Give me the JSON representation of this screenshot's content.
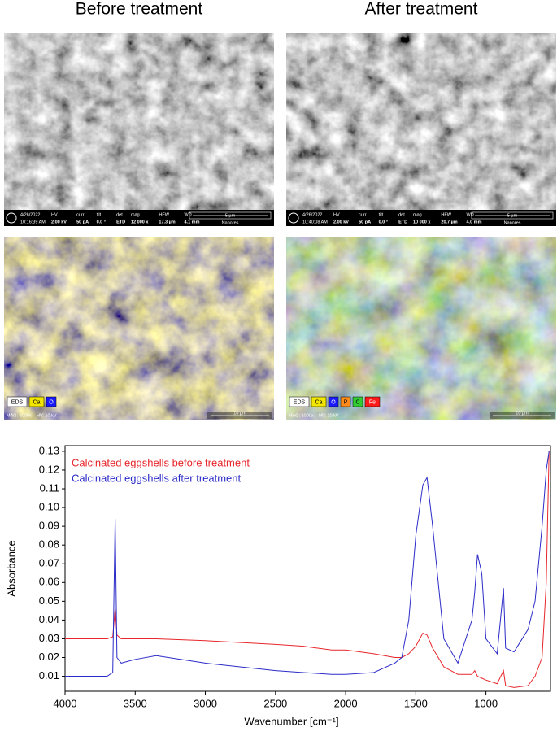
{
  "panels": [
    {
      "title": "Before treatment",
      "sem": {
        "date": "4/26/2022",
        "time": "10:16:39 AM",
        "fields": [
          {
            "label": "HV",
            "value": "2.00 kV"
          },
          {
            "label": "curr",
            "value": "50 pA"
          },
          {
            "label": "tilt",
            "value": "0.0 °"
          },
          {
            "label": "det",
            "value": "ETD"
          },
          {
            "label": "mag",
            "value": "12 000 x"
          },
          {
            "label": "HFW",
            "value": "17.3 µm"
          },
          {
            "label": "WD",
            "value": "4.1 mm"
          }
        ],
        "scale": "5 µm",
        "lab": "Nanores"
      },
      "eds": {
        "legend": [
          {
            "label": "EDS",
            "color": "#ffffff"
          },
          {
            "label": "Ca",
            "color": "#f2e600"
          },
          {
            "label": "O",
            "color": "#1a1aff"
          }
        ],
        "mag": "MAG: 5000x",
        "hv": "HV: 10 kV",
        "scale": "10 µm"
      }
    },
    {
      "title": "After treatment",
      "sem": {
        "date": "4/26/2022",
        "time": "10:40:08 AM",
        "fields": [
          {
            "label": "HV",
            "value": "2.00 kV"
          },
          {
            "label": "curr",
            "value": "50 pA"
          },
          {
            "label": "tilt",
            "value": "0.0 °"
          },
          {
            "label": "det",
            "value": "ETD"
          },
          {
            "label": "mag",
            "value": "10 000 x"
          },
          {
            "label": "HFW",
            "value": "20.7 µm"
          },
          {
            "label": "WD",
            "value": "4.0 mm"
          }
        ],
        "scale": "5 µm",
        "lab": "Nanores"
      },
      "eds": {
        "legend": [
          {
            "label": "EDS",
            "color": "#ffffff"
          },
          {
            "label": "Ca",
            "color": "#f2e600"
          },
          {
            "label": "O",
            "color": "#1a1aff"
          },
          {
            "label": "P",
            "color": "#ff8c1a"
          },
          {
            "label": "C",
            "color": "#33cc33"
          },
          {
            "label": "Fe",
            "color": "#ff1a1a"
          }
        ],
        "mag": "MAG: 1000x",
        "hv": "HV: 10 kV",
        "scale": "10 µm"
      }
    }
  ],
  "chart_data": {
    "type": "line",
    "x_label": "Wavenumber [cm⁻¹]",
    "y_label": "Absorbance",
    "x": [
      4000,
      3700,
      3660,
      3643,
      3630,
      3600,
      3500,
      3350,
      3000,
      2500,
      2300,
      2100,
      2000,
      1800,
      1650,
      1600,
      1550,
      1500,
      1450,
      1420,
      1380,
      1300,
      1200,
      1100,
      1080,
      1060,
      1030,
      1000,
      920,
      875,
      860,
      800,
      700,
      650,
      600,
      570,
      550
    ],
    "series": [
      {
        "name": "Calcinated eggshells before treatment",
        "color": "#e8262b",
        "values": [
          0.03,
          0.03,
          0.031,
          0.046,
          0.032,
          0.03,
          0.03,
          0.03,
          0.029,
          0.027,
          0.026,
          0.024,
          0.024,
          0.022,
          0.02,
          0.02,
          0.022,
          0.026,
          0.033,
          0.032,
          0.025,
          0.015,
          0.011,
          0.011,
          0.013,
          0.01,
          0.009,
          0.008,
          0.006,
          0.013,
          0.005,
          0.004,
          0.005,
          0.01,
          0.02,
          0.06,
          0.13
        ]
      },
      {
        "name": "Calcinated eggshells after treatment",
        "color": "#2b2bc8",
        "values": [
          0.01,
          0.01,
          0.012,
          0.094,
          0.02,
          0.017,
          0.019,
          0.021,
          0.017,
          0.013,
          0.012,
          0.011,
          0.011,
          0.012,
          0.017,
          0.02,
          0.04,
          0.085,
          0.112,
          0.116,
          0.09,
          0.03,
          0.017,
          0.04,
          0.055,
          0.075,
          0.065,
          0.03,
          0.022,
          0.057,
          0.025,
          0.023,
          0.035,
          0.05,
          0.09,
          0.12,
          0.13
        ]
      }
    ],
    "xlim": [
      4000,
      540
    ],
    "ylim": [
      0.002,
      0.133
    ],
    "xticks": [
      4000,
      3500,
      3000,
      2500,
      2000,
      1500,
      1000
    ],
    "yticks": [
      0.01,
      0.02,
      0.03,
      0.04,
      0.05,
      0.06,
      0.07,
      0.08,
      0.09,
      {
        "value": 0.1,
        "label": "0.10"
      },
      0.11,
      0.12,
      0.13
    ]
  }
}
